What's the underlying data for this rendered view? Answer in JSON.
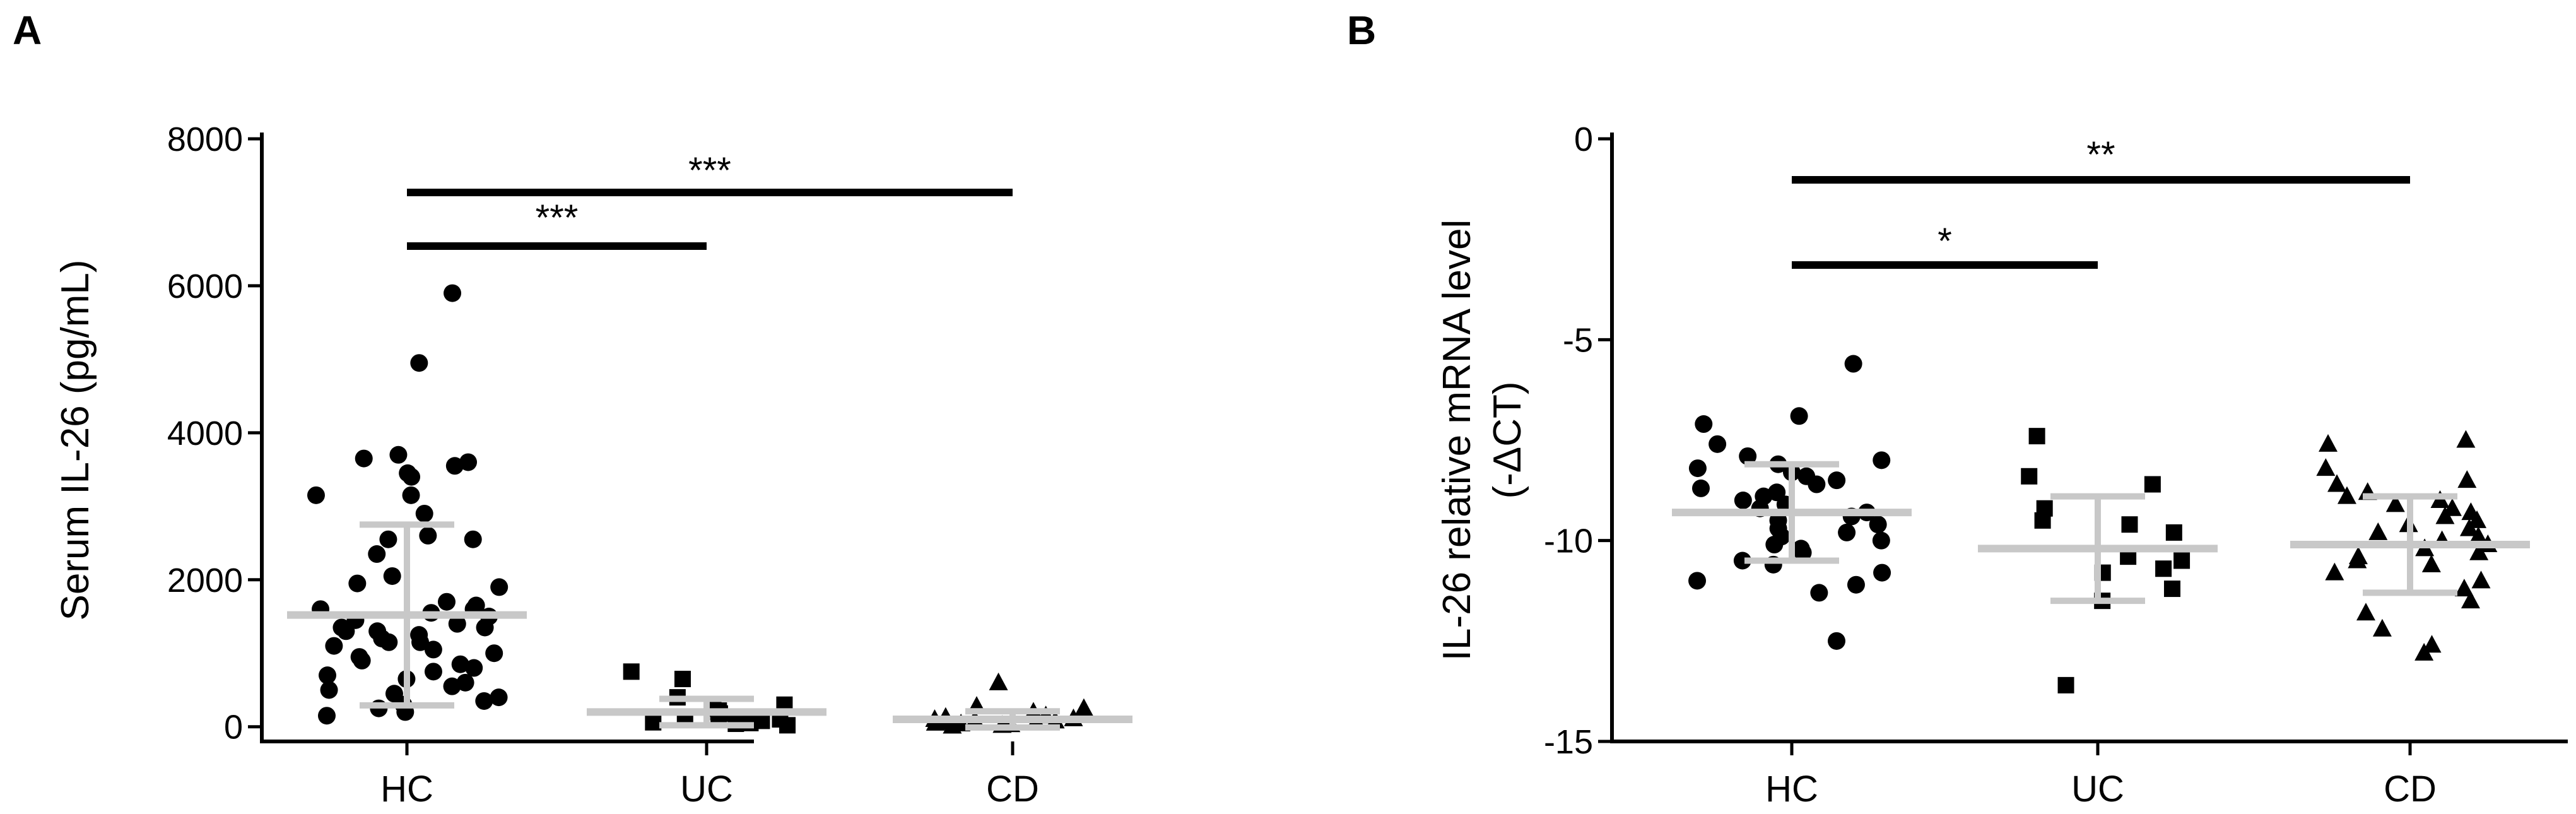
{
  "chart_data": [
    {
      "panel_label": "A",
      "type": "scatter",
      "ylabel": "Serum IL-26 (pg/mL)",
      "xlabel": "",
      "ylim": [
        -200,
        8000
      ],
      "yticks": [
        "0",
        "2000",
        "4000",
        "6000",
        "8000"
      ],
      "ytick_values": [
        0,
        2000,
        4000,
        6000,
        8000
      ],
      "categories": [
        "HC",
        "UC",
        "CD"
      ],
      "series": [
        {
          "category": "HC",
          "marker": "circle",
          "values": [
            5900,
            4950,
            3700,
            3650,
            3600,
            3550,
            3450,
            3400,
            3150,
            3150,
            2900,
            2600,
            2550,
            2550,
            2350,
            2050,
            1950,
            1900,
            1700,
            1650,
            1600,
            1600,
            1550,
            1500,
            1450,
            1400,
            1350,
            1350,
            1300,
            1300,
            1250,
            1200,
            1150,
            1150,
            1100,
            1050,
            1000,
            950,
            900,
            850,
            800,
            750,
            700,
            650,
            600,
            550,
            500,
            450,
            400,
            350,
            300,
            250,
            200,
            150
          ],
          "mean": 1520,
          "sd": 1230
        },
        {
          "category": "UC",
          "marker": "square",
          "values": [
            750,
            650,
            400,
            300,
            250,
            220,
            200,
            180,
            150,
            120,
            100,
            80,
            60,
            50,
            40,
            20
          ],
          "mean": 200,
          "sd": 180
        },
        {
          "category": "CD",
          "marker": "triangle",
          "values": [
            600,
            280,
            250,
            200,
            180,
            150,
            130,
            110,
            100,
            90,
            80,
            70,
            60,
            50,
            40,
            30,
            20,
            10
          ],
          "mean": 100,
          "sd": 110
        }
      ],
      "annotations": [
        {
          "from": "HC",
          "to": "UC",
          "label": "***"
        },
        {
          "from": "HC",
          "to": "CD",
          "label": "***"
        }
      ]
    },
    {
      "panel_label": "B",
      "type": "scatter",
      "ylabel": "IL-26 relative mRNA level",
      "ylabel2": "(-ΔCT)",
      "xlabel": "",
      "ylim": [
        -15,
        0
      ],
      "yticks": [
        "0",
        "-5",
        "-10",
        "-15"
      ],
      "ytick_values": [
        0,
        -5,
        -10,
        -15
      ],
      "categories": [
        "HC",
        "UC",
        "CD"
      ],
      "series": [
        {
          "category": "HC",
          "marker": "circle",
          "values": [
            -5.6,
            -6.9,
            -7.1,
            -7.6,
            -7.9,
            -8.0,
            -8.1,
            -8.2,
            -8.3,
            -8.4,
            -8.5,
            -8.6,
            -8.7,
            -8.8,
            -8.9,
            -9.0,
            -9.1,
            -9.2,
            -9.3,
            -9.4,
            -9.5,
            -9.6,
            -9.7,
            -9.8,
            -9.9,
            -10.0,
            -10.1,
            -10.2,
            -10.3,
            -10.5,
            -10.6,
            -10.8,
            -11.0,
            -11.1,
            -11.3,
            -12.5
          ],
          "mean": -9.3,
          "sd": 1.2
        },
        {
          "category": "UC",
          "marker": "square",
          "values": [
            -7.4,
            -8.4,
            -8.6,
            -9.2,
            -9.5,
            -9.6,
            -9.8,
            -10.4,
            -10.5,
            -10.7,
            -10.8,
            -11.2,
            -11.5,
            -13.6
          ],
          "mean": -10.2,
          "sd": 1.3
        },
        {
          "category": "CD",
          "marker": "triangle",
          "values": [
            -7.5,
            -7.6,
            -8.2,
            -8.5,
            -8.6,
            -8.8,
            -8.9,
            -9.0,
            -9.1,
            -9.2,
            -9.3,
            -9.4,
            -9.5,
            -9.6,
            -9.7,
            -9.8,
            -9.9,
            -10.0,
            -10.1,
            -10.2,
            -10.3,
            -10.4,
            -10.5,
            -10.6,
            -10.8,
            -11.0,
            -11.2,
            -11.5,
            -11.8,
            -12.2,
            -12.6,
            -12.8
          ],
          "mean": -10.1,
          "sd": 1.2
        }
      ],
      "annotations": [
        {
          "from": "HC",
          "to": "UC",
          "label": "*"
        },
        {
          "from": "HC",
          "to": "CD",
          "label": "**"
        }
      ]
    }
  ]
}
